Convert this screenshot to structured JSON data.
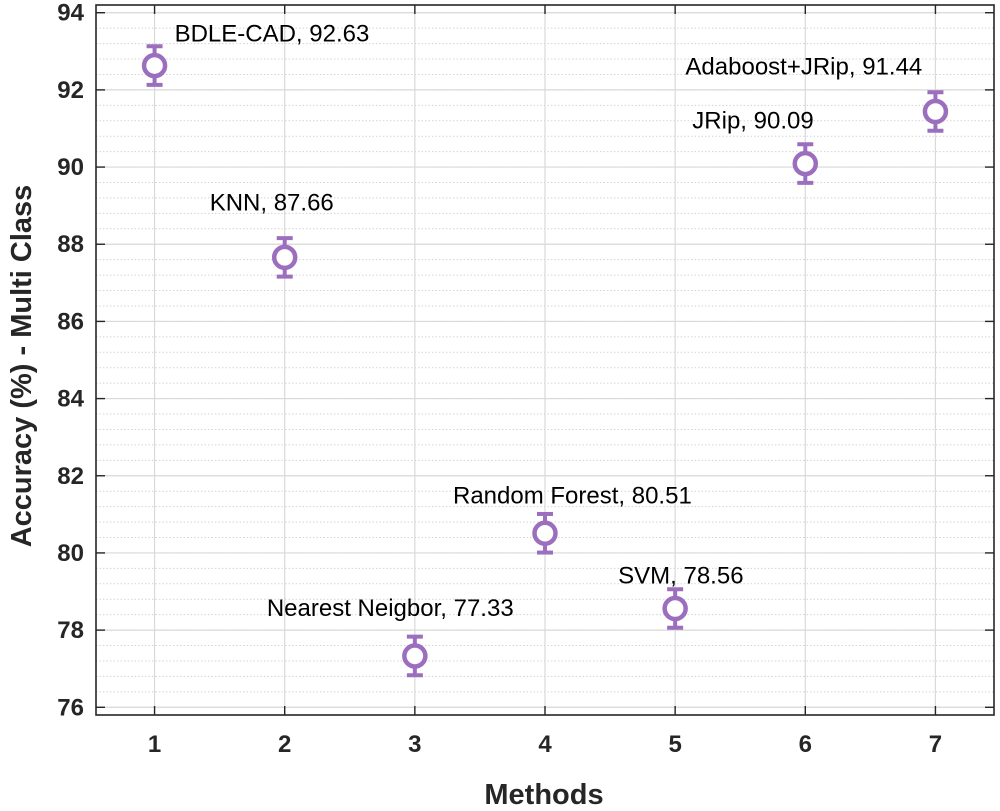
{
  "chart_data": {
    "type": "scatter",
    "title": "",
    "xlabel": "Methods",
    "ylabel": "Accuracy (%) - Multi Class",
    "xlim": [
      0.55,
      7.45
    ],
    "ylim": [
      75.8,
      94.2
    ],
    "xticks": [
      1,
      2,
      3,
      4,
      5,
      6,
      7
    ],
    "yticks": [
      76,
      78,
      80,
      82,
      84,
      86,
      88,
      90,
      92,
      94
    ],
    "grid": true,
    "minor_grid_y": true,
    "marker_color": "#9b6fbe",
    "points": [
      {
        "x": 1,
        "y": 92.63,
        "err": 0.5,
        "label": "BDLE-CAD, 92.63"
      },
      {
        "x": 2,
        "y": 87.66,
        "err": 0.5,
        "label": "KNN, 87.66"
      },
      {
        "x": 3,
        "y": 77.33,
        "err": 0.5,
        "label": "Nearest Neigbor, 77.33"
      },
      {
        "x": 4,
        "y": 80.51,
        "err": 0.5,
        "label": "Random Forest, 80.51"
      },
      {
        "x": 5,
        "y": 78.56,
        "err": 0.5,
        "label": "SVM, 78.56"
      },
      {
        "x": 6,
        "y": 90.09,
        "err": 0.5,
        "label": "JRip, 90.09"
      },
      {
        "x": 7,
        "y": 91.44,
        "err": 0.5,
        "label": "Adaboost+JRip, 91.44"
      }
    ]
  }
}
